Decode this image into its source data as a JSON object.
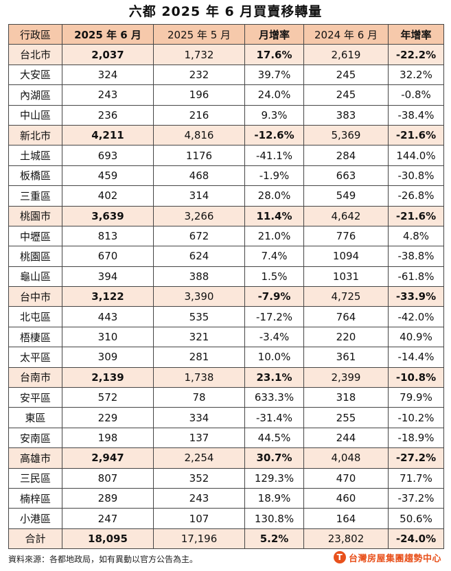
{
  "title": "六都 2025 年 6 月買賣移轉量",
  "headers": [
    "行政區",
    "2025 年 6 月",
    "2025 年 5 月",
    "月增率",
    "2024 年 6 月",
    "年增率"
  ],
  "rows": [
    {
      "type": "city",
      "cells": [
        "台北市",
        "2,037",
        "1,732",
        "17.6%",
        "2,619",
        "-22.2%"
      ]
    },
    {
      "type": "district",
      "cells": [
        "大安區",
        "324",
        "232",
        "39.7%",
        "245",
        "32.2%"
      ]
    },
    {
      "type": "district",
      "cells": [
        "內湖區",
        "243",
        "196",
        "24.0%",
        "245",
        "-0.8%"
      ]
    },
    {
      "type": "district",
      "cells": [
        "中山區",
        "236",
        "216",
        "9.3%",
        "383",
        "-38.4%"
      ]
    },
    {
      "type": "city",
      "cells": [
        "新北市",
        "4,211",
        "4,816",
        "-12.6%",
        "5,369",
        "-21.6%"
      ]
    },
    {
      "type": "district",
      "cells": [
        "土城區",
        "693",
        "1176",
        "-41.1%",
        "284",
        "144.0%"
      ]
    },
    {
      "type": "district",
      "cells": [
        "板橋區",
        "459",
        "468",
        "-1.9%",
        "663",
        "-30.8%"
      ]
    },
    {
      "type": "district",
      "cells": [
        "三重區",
        "402",
        "314",
        "28.0%",
        "549",
        "-26.8%"
      ]
    },
    {
      "type": "city",
      "cells": [
        "桃園市",
        "3,639",
        "3,266",
        "11.4%",
        "4,642",
        "-21.6%"
      ]
    },
    {
      "type": "district",
      "cells": [
        "中壢區",
        "813",
        "672",
        "21.0%",
        "776",
        "4.8%"
      ]
    },
    {
      "type": "district",
      "cells": [
        "桃園區",
        "670",
        "624",
        "7.4%",
        "1094",
        "-38.8%"
      ]
    },
    {
      "type": "district",
      "cells": [
        "龜山區",
        "394",
        "388",
        "1.5%",
        "1031",
        "-61.8%"
      ]
    },
    {
      "type": "city",
      "cells": [
        "台中市",
        "3,122",
        "3,390",
        "-7.9%",
        "4,725",
        "-33.9%"
      ]
    },
    {
      "type": "district",
      "cells": [
        "北屯區",
        "443",
        "535",
        "-17.2%",
        "764",
        "-42.0%"
      ]
    },
    {
      "type": "district",
      "cells": [
        "梧棲區",
        "310",
        "321",
        "-3.4%",
        "220",
        "40.9%"
      ]
    },
    {
      "type": "district",
      "cells": [
        "太平區",
        "309",
        "281",
        "10.0%",
        "361",
        "-14.4%"
      ]
    },
    {
      "type": "city",
      "cells": [
        "台南市",
        "2,139",
        "1,738",
        "23.1%",
        "2,399",
        "-10.8%"
      ]
    },
    {
      "type": "district",
      "cells": [
        "安平區",
        "572",
        "78",
        "633.3%",
        "318",
        "79.9%"
      ]
    },
    {
      "type": "district",
      "cells": [
        "東區",
        "229",
        "334",
        "-31.4%",
        "255",
        "-10.2%"
      ]
    },
    {
      "type": "district",
      "cells": [
        "安南區",
        "198",
        "137",
        "44.5%",
        "244",
        "-18.9%"
      ]
    },
    {
      "type": "city",
      "cells": [
        "高雄市",
        "2,947",
        "2,254",
        "30.7%",
        "4,048",
        "-27.2%"
      ]
    },
    {
      "type": "district",
      "cells": [
        "三民區",
        "807",
        "352",
        "129.3%",
        "470",
        "71.7%"
      ]
    },
    {
      "type": "district",
      "cells": [
        "楠梓區",
        "289",
        "243",
        "18.9%",
        "460",
        "-37.2%"
      ]
    },
    {
      "type": "district",
      "cells": [
        "小港區",
        "247",
        "107",
        "130.8%",
        "164",
        "50.6%"
      ]
    },
    {
      "type": "city",
      "cells": [
        "合計",
        "18,095",
        "17,196",
        "5.2%",
        "23,802",
        "-24.0%"
      ]
    }
  ],
  "footer": {
    "source": "資料來源：各都地政局，如有異動以官方公告為主。",
    "brand": "台灣房屋集團趨勢中心",
    "brand_color": "#e8511c"
  },
  "colors": {
    "header_bg": "#f6c9ab",
    "city_row_bg": "#fbe7da"
  }
}
